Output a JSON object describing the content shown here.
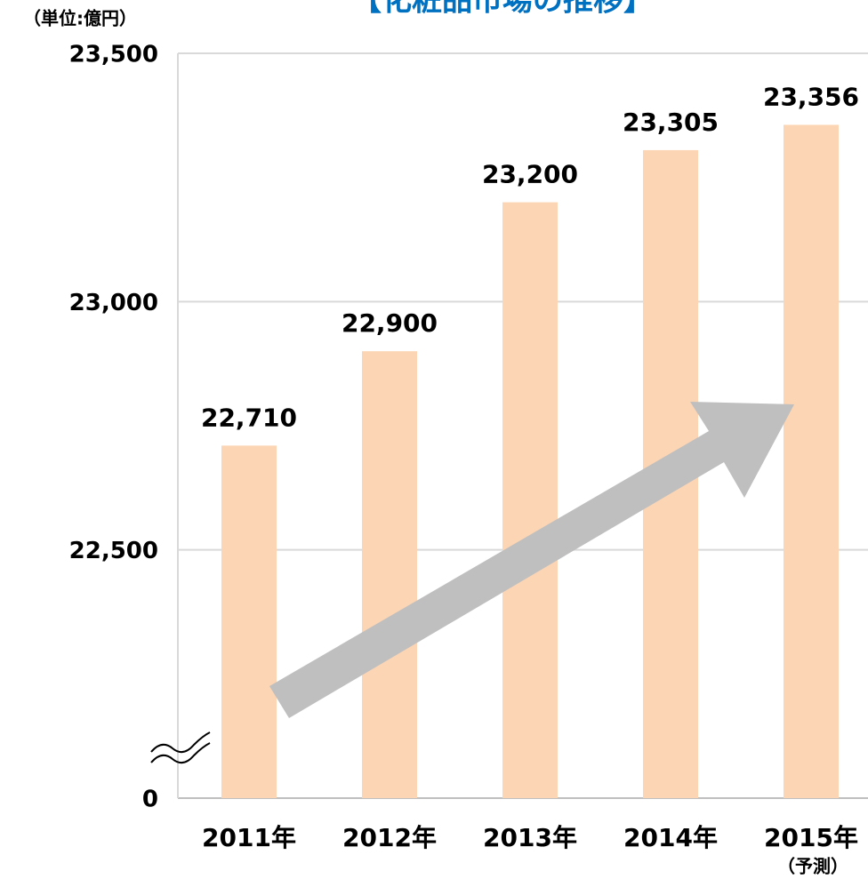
{
  "chart_data": {
    "type": "bar",
    "title": "【化粧品市場の推移】",
    "unit_label": "（単位:億円）",
    "categories": [
      "2011年",
      "2012年",
      "2013年",
      "2014年",
      "2015年"
    ],
    "category_notes": [
      null,
      null,
      null,
      null,
      "（予測）"
    ],
    "values": [
      22710,
      22900,
      23200,
      23305,
      23356
    ],
    "value_labels": [
      "22,710",
      "22,900",
      "23,200",
      "23,305",
      "23,356"
    ],
    "color": "#fcd5b4",
    "ylim": [
      0,
      23500
    ],
    "yticks": [
      0,
      {
        "value": 22500,
        "label": "22,500"
      },
      {
        "value": 23000,
        "label": "23,000"
      },
      {
        "value": 23500,
        "label": "23,500"
      }
    ],
    "axis_break": true,
    "grid": true
  }
}
